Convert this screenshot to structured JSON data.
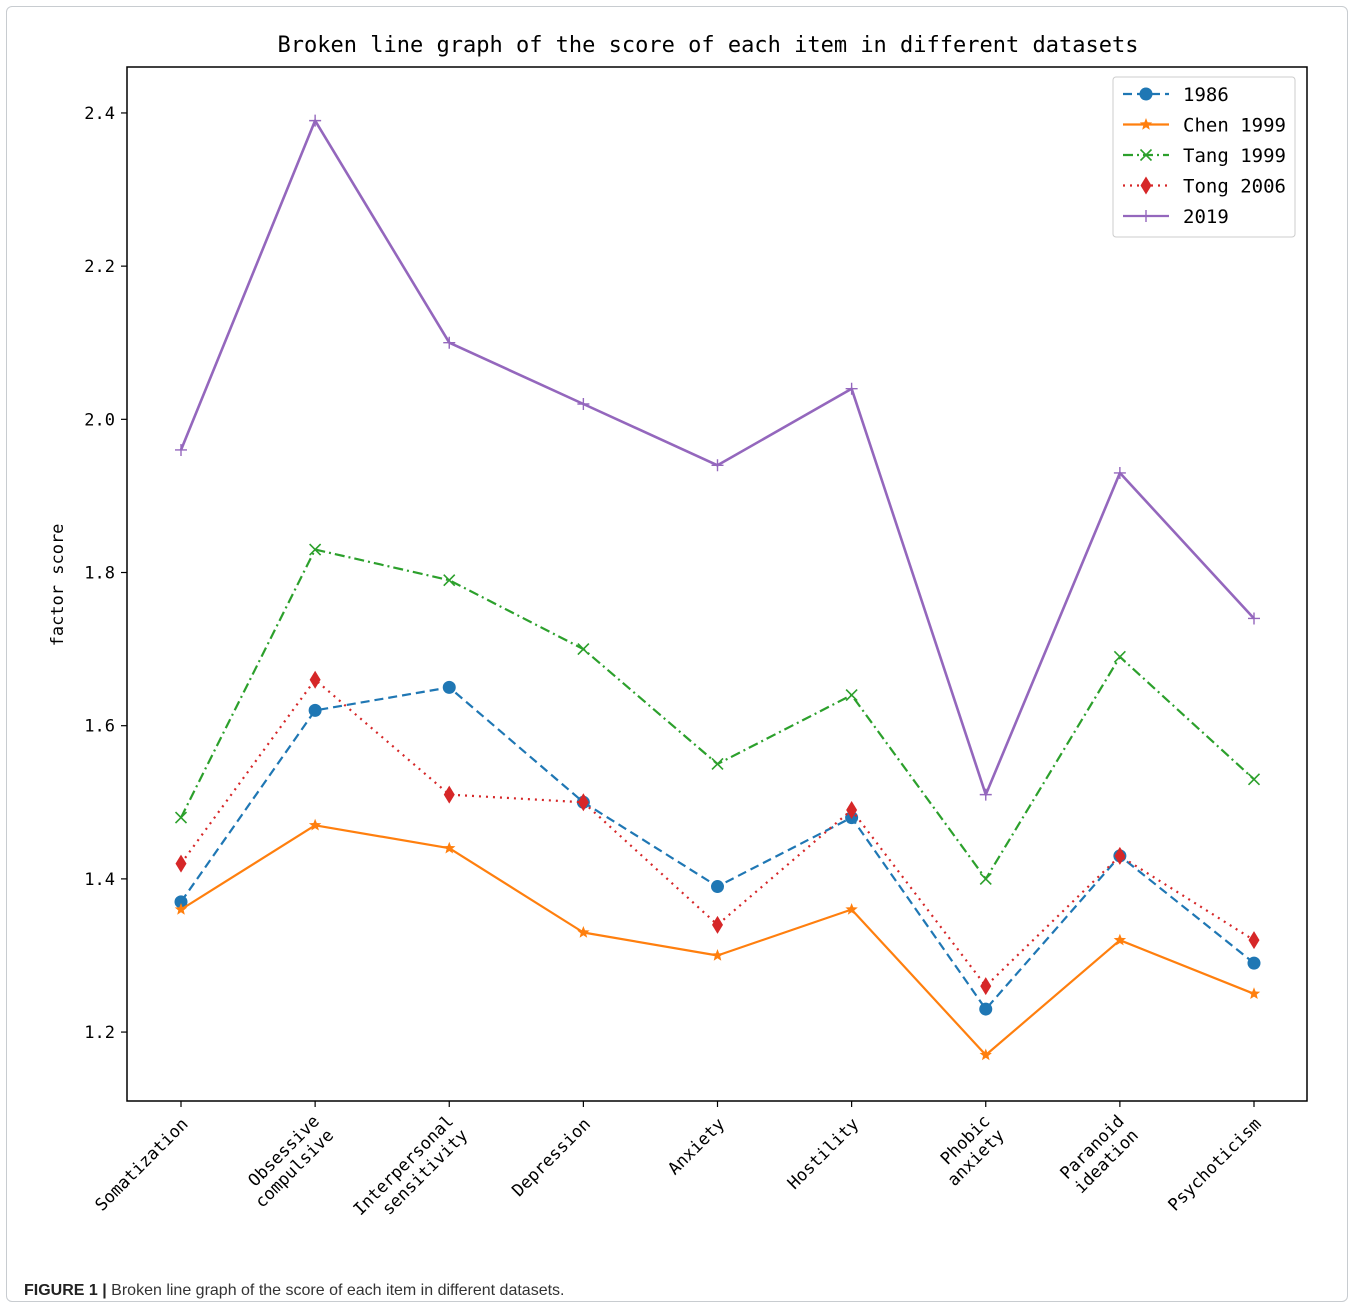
{
  "caption": {
    "label": "FIGURE 1 |",
    "text": "Broken line graph of the score of each item in different datasets."
  },
  "chart_data": {
    "type": "line",
    "title": "Broken line graph of the score of each item in different datasets",
    "xlabel": "",
    "ylabel": "factor score",
    "ylim": [
      1.11,
      2.46
    ],
    "yticks": [
      "1.2",
      "1.4",
      "1.6",
      "1.8",
      "2.0",
      "2.2",
      "2.4"
    ],
    "categories": [
      "Somatization",
      "Obsessive\ncompulsive",
      "Interpersonal\nsensitivity",
      "Depression",
      "Anxiety",
      "Hostility",
      "Phobic\nanxiety",
      "Paranoid\nideation",
      "Psychoticism"
    ],
    "legend_position": "top-right",
    "grid": false,
    "series": [
      {
        "name": "1986",
        "color": "#1f77b4",
        "dash": "dashed",
        "marker": "circle",
        "values": [
          1.37,
          1.62,
          1.65,
          1.5,
          1.39,
          1.48,
          1.23,
          1.43,
          1.29
        ]
      },
      {
        "name": "Chen 1999",
        "color": "#ff7f0e",
        "dash": "solid",
        "marker": "star",
        "values": [
          1.36,
          1.47,
          1.44,
          1.33,
          1.3,
          1.36,
          1.17,
          1.32,
          1.25
        ]
      },
      {
        "name": "Tang 1999",
        "color": "#2ca02c",
        "dash": "dashdot",
        "marker": "x",
        "values": [
          1.48,
          1.83,
          1.79,
          1.7,
          1.55,
          1.64,
          1.4,
          1.69,
          1.53
        ]
      },
      {
        "name": "Tong 2006",
        "color": "#d62728",
        "dash": "dotted",
        "marker": "diamond",
        "values": [
          1.42,
          1.66,
          1.51,
          1.5,
          1.34,
          1.49,
          1.26,
          1.43,
          1.32
        ]
      },
      {
        "name": "2019",
        "color": "#9467bd",
        "dash": "solid",
        "marker": "plus",
        "values": [
          1.96,
          2.39,
          2.1,
          2.02,
          1.94,
          2.04,
          1.51,
          1.93,
          1.74
        ]
      }
    ]
  }
}
